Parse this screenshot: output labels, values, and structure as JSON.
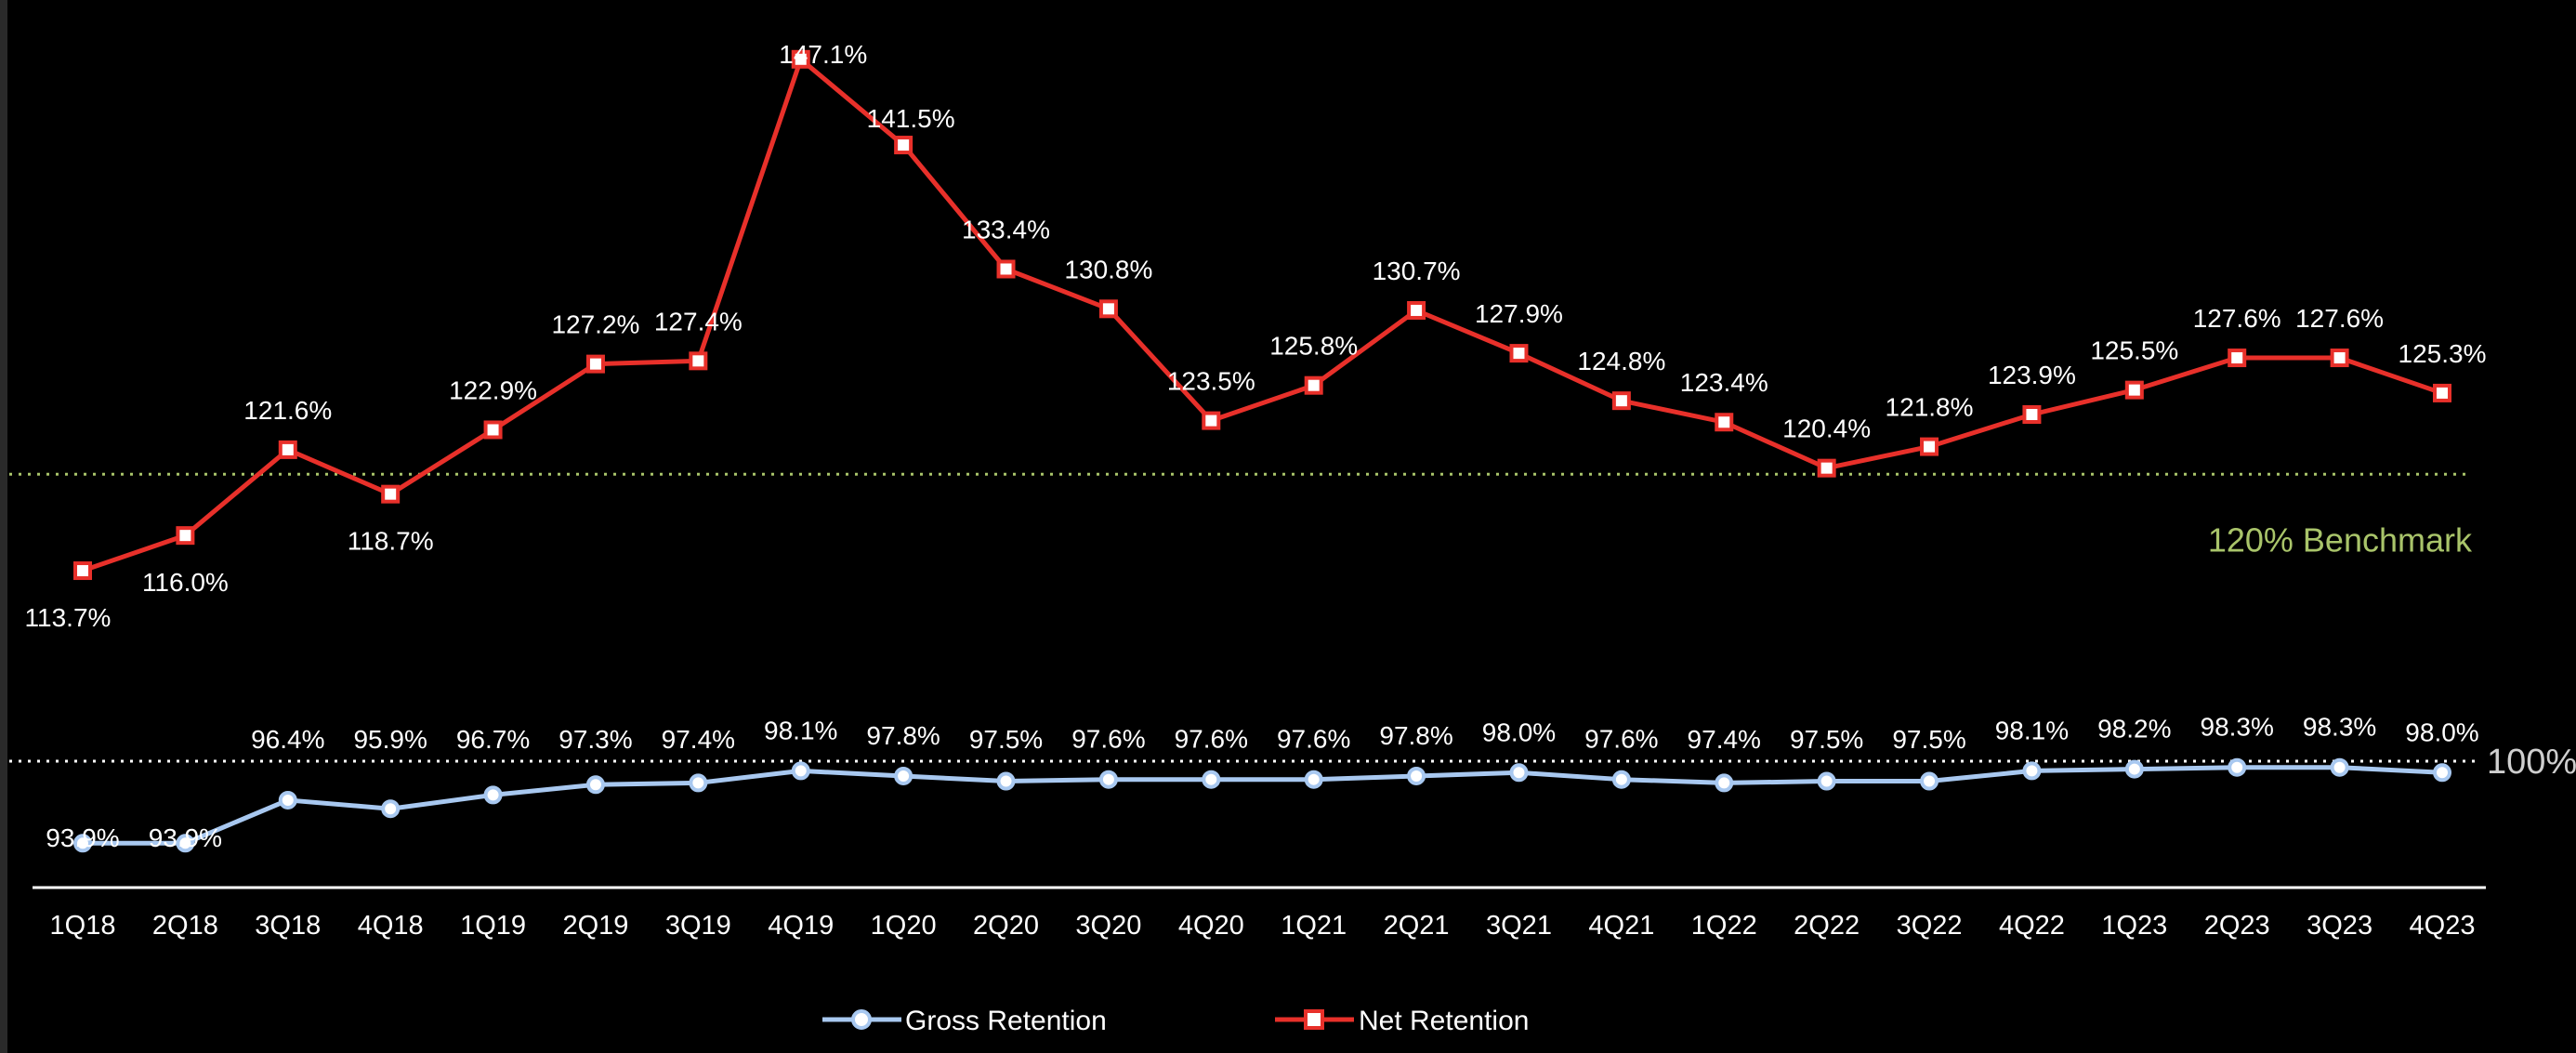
{
  "chart_data": {
    "type": "line",
    "categories": [
      "1Q18",
      "2Q18",
      "3Q18",
      "4Q18",
      "1Q19",
      "2Q19",
      "3Q19",
      "4Q19",
      "1Q20",
      "2Q20",
      "3Q20",
      "4Q20",
      "1Q21",
      "2Q21",
      "3Q21",
      "4Q21",
      "1Q22",
      "2Q22",
      "3Q22",
      "4Q22",
      "1Q23",
      "2Q23",
      "3Q23",
      "4Q23"
    ],
    "series": [
      {
        "name": "Gross Retention",
        "color": "#a8c8f0",
        "marker": "circle",
        "values": [
          93.9,
          93.9,
          96.4,
          95.9,
          96.7,
          97.3,
          97.4,
          98.1,
          97.8,
          97.5,
          97.6,
          97.6,
          97.6,
          97.8,
          98.0,
          97.6,
          97.4,
          97.5,
          97.5,
          98.1,
          98.2,
          98.3,
          98.3,
          98.0
        ],
        "labels": [
          "93.9%",
          "93.9%",
          "96.4%",
          "95.9%",
          "96.7%",
          "97.3%",
          "97.4%",
          "98.1%",
          "97.8%",
          "97.5%",
          "97.6%",
          "97.6%",
          "97.6%",
          "97.8%",
          "98.0%",
          "97.6%",
          "97.4%",
          "97.5%",
          "97.5%",
          "98.1%",
          "98.2%",
          "98.3%",
          "98.3%",
          "98.0%"
        ]
      },
      {
        "name": "Net Retention",
        "color": "#e8302a",
        "marker": "square",
        "values": [
          113.7,
          116.0,
          121.6,
          118.7,
          122.9,
          127.2,
          127.4,
          147.1,
          141.5,
          133.4,
          130.8,
          123.5,
          125.8,
          130.7,
          127.9,
          124.8,
          123.4,
          120.4,
          121.8,
          123.9,
          125.5,
          127.6,
          127.6,
          125.3
        ],
        "labels": [
          "113.7%",
          "116.0%",
          "121.6%",
          "118.7%",
          "122.9%",
          "127.2%",
          "127.4%",
          "147.1%",
          "141.5%",
          "133.4%",
          "130.8%",
          "123.5%",
          "125.8%",
          "130.7%",
          "127.9%",
          "124.8%",
          "123.4%",
          "120.4%",
          "121.8%",
          "123.9%",
          "125.5%",
          "127.6%",
          "127.6%",
          "125.3%"
        ]
      }
    ],
    "reference_lines": [
      {
        "value": 120,
        "label": "120% Benchmark",
        "color": "#a9c46a"
      },
      {
        "value": 100,
        "label": "100%",
        "color": "#cfcfcf"
      }
    ],
    "legend_position": "bottom-center",
    "grid": false,
    "background": "#000000",
    "axis_color": "#ffffff"
  }
}
